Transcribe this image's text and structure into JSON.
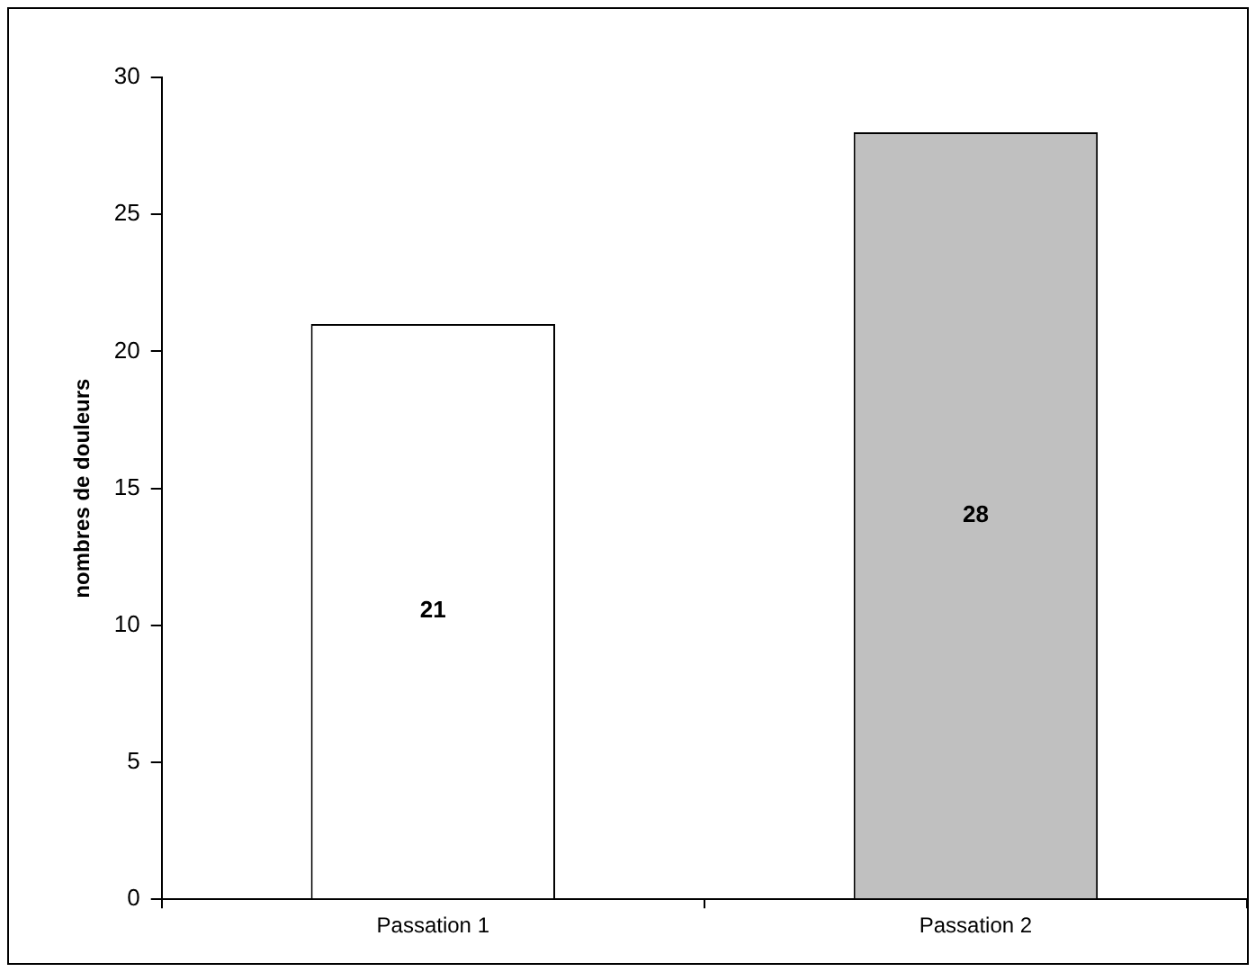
{
  "chart_data": {
    "type": "bar",
    "ylabel": "nombres de douleurs",
    "categories": [
      "Passation 1",
      "Passation 2"
    ],
    "values": [
      21,
      28
    ],
    "colors": [
      "#ffffff",
      "#c0c0c0"
    ],
    "ylim": [
      0,
      30
    ],
    "yticks": [
      0,
      5,
      10,
      15,
      20,
      25,
      30
    ],
    "grid": false,
    "data_labels": true
  }
}
